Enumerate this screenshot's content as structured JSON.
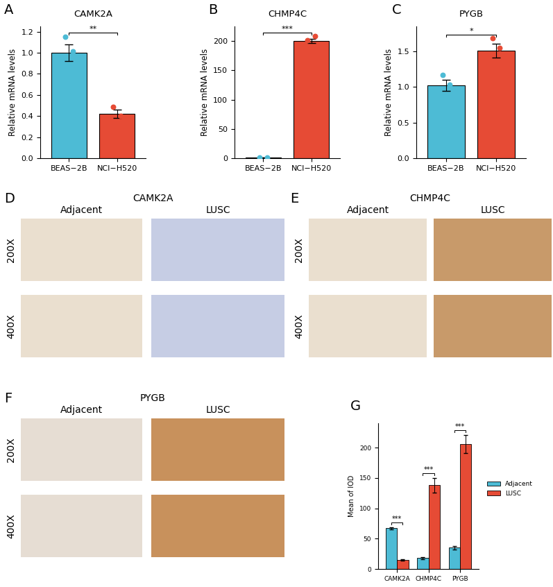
{
  "chart_data": [
    {
      "type": "bar",
      "panel": "A",
      "title": "CAMK2A",
      "y_label": "Relative mRNA levels",
      "categories": [
        "BEAS−2B",
        "NCI−H520"
      ],
      "values": [
        1.0,
        0.42
      ],
      "errors": [
        0.08,
        0.04
      ],
      "points": [
        [
          1.15,
          1.01
        ],
        [
          0.49,
          0.4
        ]
      ],
      "colors": [
        "#4dbbd5",
        "#e64b35"
      ],
      "ylim": [
        0,
        1.25
      ],
      "yticks": [
        {
          "value": 0,
          "label": "0.0"
        },
        0.2,
        0.4,
        0.6,
        0.8,
        {
          "value": 1,
          "label": "1.0"
        },
        1.2
      ],
      "significance": "**"
    },
    {
      "type": "bar",
      "panel": "B",
      "title": "CHMP4C",
      "y_label": "Relative mRNA levels",
      "categories": [
        "BEAS−2B",
        "NCI−H520"
      ],
      "values": [
        1.0,
        200
      ],
      "errors": [
        0.2,
        4
      ],
      "points": [
        [
          1.0,
          1.0
        ],
        [
          201,
          208
        ]
      ],
      "colors": [
        "#4dbbd5",
        "#e64b35"
      ],
      "ylim": [
        0,
        225
      ],
      "yticks": [
        0,
        50,
        100,
        150,
        200
      ],
      "significance": "***"
    },
    {
      "type": "bar",
      "panel": "C",
      "title": "PYGB",
      "y_label": "Relative mRNA levels",
      "categories": [
        "BEAS−2B",
        "NCI−H520"
      ],
      "values": [
        1.02,
        1.51
      ],
      "errors": [
        0.08,
        0.1
      ],
      "points": [
        [
          1.17,
          1.03
        ],
        [
          1.68,
          1.55
        ]
      ],
      "colors": [
        "#4dbbd5",
        "#e64b35"
      ],
      "ylim": [
        0,
        1.85
      ],
      "yticks": [
        {
          "value": 0,
          "label": "0.0"
        },
        0.5,
        {
          "value": 1,
          "label": "1.0"
        },
        1.5
      ],
      "significance": "*"
    },
    {
      "type": "image",
      "panel": "D",
      "title": "CAMK2A",
      "columns": [
        "Adjacent",
        "LUSC"
      ],
      "rows": [
        "200X",
        "400X"
      ]
    },
    {
      "type": "image",
      "panel": "E",
      "title": "CHMP4C",
      "columns": [
        "Adjacent",
        "LUSC"
      ],
      "rows": [
        "200X",
        "400X"
      ]
    },
    {
      "type": "image",
      "panel": "F",
      "title": "PYGB",
      "columns": [
        "Adjacent",
        "LUSC"
      ],
      "rows": [
        "200X",
        "400X"
      ]
    },
    {
      "type": "bar",
      "panel": "G",
      "y_label": "Mean of IOD",
      "categories": [
        "CAMK2A",
        "CHMP4C",
        "PYGB"
      ],
      "series": [
        {
          "name": "Adjacent",
          "color": "#4dbbd5",
          "values": [
            67,
            18,
            35
          ],
          "errors": [
            2,
            1.5,
            3
          ]
        },
        {
          "name": "LUSC",
          "color": "#e64b35",
          "values": [
            15,
            138,
            206
          ],
          "errors": [
            1.5,
            12,
            15
          ]
        }
      ],
      "ylim": [
        0,
        240
      ],
      "yticks": [
        0,
        50,
        100,
        150,
        200
      ],
      "legend": "right",
      "significance": [
        "***",
        "***",
        "***"
      ]
    }
  ]
}
